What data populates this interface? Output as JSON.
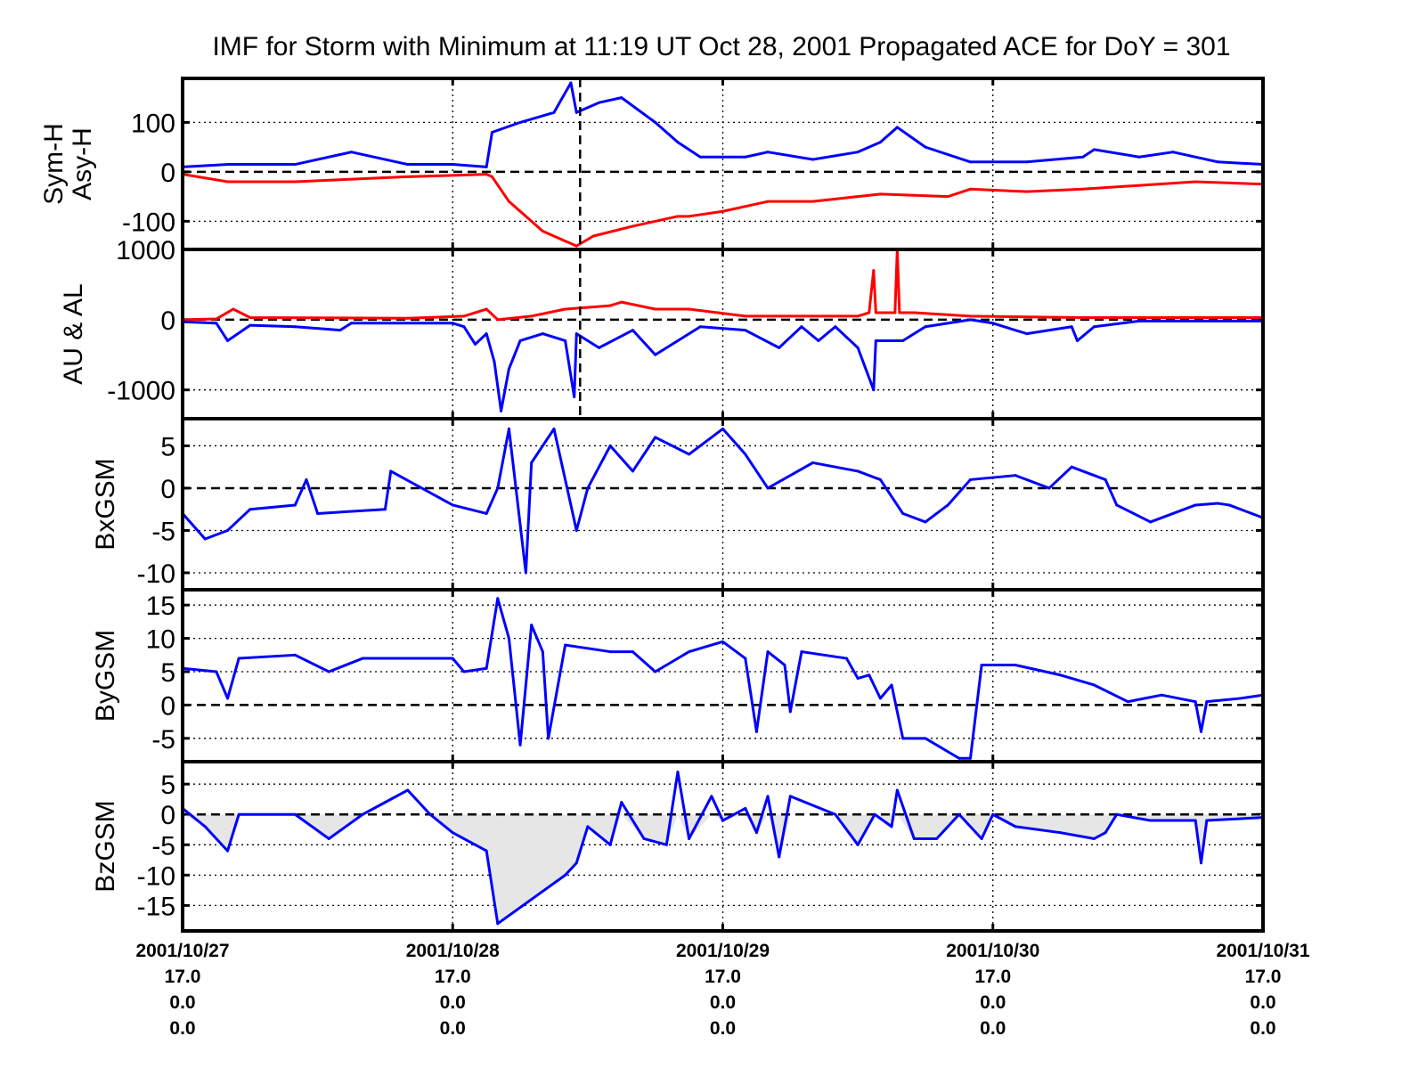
{
  "chart_data": {
    "type": "line",
    "title": "IMF for Storm with Minimum at 11:19 UT Oct 28, 2001  Propagated ACE for DoY = 301",
    "x_unit": "hours since 2001/10/27 00:00",
    "xlim": [
      0,
      96
    ],
    "event_marker_hour": 35.32,
    "x_ticks": [
      {
        "hour": 0,
        "lines": [
          "2001/10/27",
          "17.0",
          "0.0",
          "0.0"
        ]
      },
      {
        "hour": 24,
        "lines": [
          "2001/10/28",
          "17.0",
          "0.0",
          "0.0"
        ]
      },
      {
        "hour": 48,
        "lines": [
          "2001/10/29",
          "17.0",
          "0.0",
          "0.0"
        ]
      },
      {
        "hour": 72,
        "lines": [
          "2001/10/30",
          "17.0",
          "0.0",
          "0.0"
        ]
      },
      {
        "hour": 96,
        "lines": [
          "2001/10/31",
          "17.0",
          "0.0",
          "0.0"
        ]
      }
    ],
    "panels": [
      {
        "ylabel": [
          "Sym-H",
          "Asy-H"
        ],
        "ylim": [
          -157,
          189
        ],
        "yticks": [
          {
            "v": 100,
            "label": "100"
          },
          {
            "v": 0,
            "label": "0"
          },
          {
            "v": -100,
            "label": "-100"
          }
        ],
        "series": [
          {
            "name": "Asy-H",
            "color": "#0000ff",
            "h": [
              0,
              4,
              10,
              15,
              20,
              24,
              27,
              27.5,
              30,
              33,
              34.5,
              35,
              37,
              39,
              42,
              44,
              46,
              50,
              52,
              56,
              60,
              62,
              63.5,
              66,
              70,
              75,
              80,
              81,
              85,
              88,
              92,
              96
            ],
            "v": [
              10,
              15,
              15,
              40,
              15,
              15,
              10,
              80,
              100,
              120,
              180,
              120,
              140,
              150,
              100,
              60,
              30,
              30,
              40,
              25,
              40,
              60,
              90,
              50,
              20,
              20,
              30,
              45,
              30,
              40,
              20,
              15
            ]
          },
          {
            "name": "Sym-H",
            "color": "#ff0000",
            "h": [
              0,
              4,
              10,
              20,
              27,
              27.5,
              29,
              32,
              34,
              35,
              36.5,
              40,
              44,
              45,
              48,
              52,
              56,
              62,
              68,
              70,
              75,
              80,
              90,
              96
            ],
            "v": [
              -5,
              -20,
              -20,
              -10,
              -5,
              -10,
              -60,
              -120,
              -140,
              -150,
              -130,
              -110,
              -90,
              -90,
              -80,
              -60,
              -60,
              -45,
              -50,
              -35,
              -40,
              -35,
              -20,
              -25
            ]
          }
        ]
      },
      {
        "ylabel": [
          "AU & AL"
        ],
        "ylim": [
          -1410,
          1000
        ],
        "yticks": [
          {
            "v": 1000,
            "label": "1000"
          },
          {
            "v": 0,
            "label": "0"
          },
          {
            "v": -1000,
            "label": "-1000"
          }
        ],
        "series": [
          {
            "name": "AU",
            "color": "#ff0000",
            "h": [
              0,
              3,
              4.5,
              6,
              20,
              25,
              27,
              28,
              31,
              34,
              38,
              39,
              42,
              45,
              50,
              60,
              61,
              61.4,
              61.6,
              62,
              63.3,
              63.5,
              63.7,
              65,
              70,
              80,
              96
            ],
            "v": [
              0,
              10,
              150,
              30,
              20,
              50,
              150,
              0,
              50,
              150,
              200,
              250,
              150,
              150,
              50,
              50,
              100,
              700,
              100,
              100,
              100,
              1000,
              100,
              100,
              50,
              30,
              30
            ]
          },
          {
            "name": "AL",
            "color": "#0000ff",
            "h": [
              0,
              3,
              4,
              6,
              10,
              14,
              15,
              24,
              25,
              26,
              27,
              27.7,
              28.3,
              29,
              30,
              32,
              34,
              34.8,
              35,
              37,
              40,
              42,
              44,
              46,
              50,
              53,
              55,
              56.5,
              58,
              60,
              61.4,
              61.6,
              62,
              64,
              66,
              70,
              72,
              75,
              79,
              79.5,
              81,
              85,
              96
            ],
            "v": [
              -30,
              -50,
              -300,
              -80,
              -100,
              -150,
              -50,
              -50,
              -100,
              -350,
              -200,
              -600,
              -1300,
              -700,
              -300,
              -200,
              -300,
              -1100,
              -200,
              -400,
              -150,
              -500,
              -300,
              -100,
              -150,
              -400,
              -100,
              -300,
              -100,
              -400,
              -1000,
              -300,
              -300,
              -300,
              -100,
              0,
              -50,
              -200,
              -100,
              -300,
              -100,
              -20,
              -20
            ]
          }
        ]
      },
      {
        "ylabel": [
          "BxGSM"
        ],
        "ylim": [
          -12,
          8.2
        ],
        "yticks": [
          {
            "v": 5,
            "label": "5"
          },
          {
            "v": 0,
            "label": "0"
          },
          {
            "v": -5,
            "label": "-5"
          },
          {
            "v": -10,
            "label": "-10"
          }
        ],
        "series": [
          {
            "name": "BxGSM",
            "color": "#0000ff",
            "h": [
              0,
              2,
              4,
              6,
              10,
              11,
              12,
              18,
              18.5,
              24,
              27,
              28,
              29,
              30.5,
              31,
              33,
              35,
              36,
              38,
              40,
              42,
              45,
              48,
              50,
              52,
              56,
              60,
              62,
              64,
              66,
              68,
              70,
              74,
              77,
              79,
              82,
              83,
              86,
              90,
              92,
              93,
              96
            ],
            "v": [
              -3,
              -6,
              -5,
              -2.5,
              -2,
              1,
              -3,
              -2.5,
              2,
              -2,
              -3,
              0,
              7,
              -10,
              3,
              7,
              -5,
              0,
              5,
              2,
              6,
              4,
              7,
              4,
              0,
              3,
              2,
              1,
              -3,
              -4,
              -2,
              1,
              1.5,
              0,
              2.5,
              1,
              -2,
              -4,
              -2,
              -1.8,
              -2,
              -3.5
            ]
          }
        ]
      },
      {
        "ylabel": [
          "ByGSM"
        ],
        "ylim": [
          -8.5,
          17.3
        ],
        "yticks": [
          {
            "v": 15,
            "label": "15"
          },
          {
            "v": 10,
            "label": "10"
          },
          {
            "v": 5,
            "label": "5"
          },
          {
            "v": 0,
            "label": "0"
          },
          {
            "v": -5,
            "label": "-5"
          }
        ],
        "series": [
          {
            "name": "ByGSM",
            "color": "#0000ff",
            "h": [
              0,
              3,
              4,
              5,
              10,
              13,
              16,
              24,
              25,
              27,
              28,
              29,
              30,
              31,
              32,
              32.5,
              34,
              38,
              40,
              42,
              45,
              48,
              50,
              51,
              52,
              53.5,
              54,
              55,
              59,
              60,
              61,
              62,
              63,
              64,
              66,
              69,
              70,
              71,
              74,
              78,
              81,
              84,
              87,
              90,
              90.5,
              91,
              94,
              96
            ],
            "v": [
              5.5,
              5,
              1,
              7,
              7.5,
              5,
              7,
              7,
              5,
              5.5,
              16,
              10,
              -6,
              12,
              8,
              -5,
              9,
              8,
              8,
              5,
              8,
              9.5,
              7,
              -4,
              8,
              6,
              -1,
              8,
              7,
              4,
              4.5,
              1,
              3,
              -5,
              -5,
              -8,
              -8,
              6,
              6,
              4.5,
              3,
              0.5,
              1.5,
              0.5,
              -4,
              0.5,
              1,
              1.5
            ]
          }
        ]
      },
      {
        "ylabel": [
          "BzGSM"
        ],
        "ylim": [
          -19.2,
          8.7
        ],
        "yticks": [
          {
            "v": 5,
            "label": "5"
          },
          {
            "v": 0,
            "label": "0"
          },
          {
            "v": -5,
            "label": "-5"
          },
          {
            "v": -10,
            "label": "-10"
          },
          {
            "v": -15,
            "label": "-15"
          }
        ],
        "fill_negative": "#e6e6e6",
        "series": [
          {
            "name": "BzGSM",
            "color": "#0000ff",
            "h": [
              0,
              2,
              4,
              5,
              10,
              13,
              16,
              18,
              20,
              22,
              24,
              26,
              27,
              28,
              31,
              34,
              35,
              36,
              38,
              39,
              41,
              43,
              44,
              45,
              47,
              48,
              50,
              51,
              52,
              53,
              54,
              58,
              60,
              61.5,
              63,
              63.5,
              65,
              67,
              69,
              71,
              72,
              74,
              78,
              81,
              82,
              83,
              86,
              90,
              90.5,
              91,
              96
            ],
            "v": [
              1,
              -2,
              -6,
              0,
              0,
              -4,
              0,
              2,
              4,
              0,
              -3,
              -5,
              -6,
              -18,
              -14,
              -10,
              -8,
              -2,
              -5,
              2,
              -4,
              -5,
              7,
              -4,
              3,
              -1,
              1,
              -3,
              3,
              -7,
              3,
              0,
              -5,
              0,
              -2,
              4,
              -4,
              -4,
              0,
              -4,
              0,
              -2,
              -3,
              -4,
              -3,
              0,
              -1,
              -1,
              -8,
              -1,
              -0.5
            ]
          }
        ]
      }
    ]
  }
}
